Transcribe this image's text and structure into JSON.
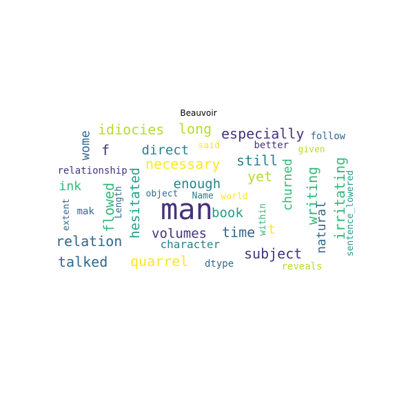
{
  "title": "Beauvoir",
  "colors": {
    "dark_purple": "#46327e",
    "purple": "#482878",
    "teal": "#31688e",
    "blue_teal": "#26828e",
    "green_teal": "#1f9e89",
    "green": "#35b779",
    "lime": "#b5de2b",
    "yellow": "#fde725"
  },
  "words": [
    {
      "text": "man",
      "color": "#46327e"
    },
    {
      "text": "especially",
      "color": "#46327e"
    },
    {
      "text": "idiocies",
      "color": "#b5de2b"
    },
    {
      "text": "long",
      "color": "#b5de2b"
    },
    {
      "text": "wome",
      "color": "#31688e"
    },
    {
      "text": "f",
      "color": "#46327e"
    },
    {
      "text": "direct",
      "color": "#26828e"
    },
    {
      "text": "follow",
      "color": "#31688e"
    },
    {
      "text": "said",
      "color": "#fde725"
    },
    {
      "text": "better",
      "color": "#46327e"
    },
    {
      "text": "given",
      "color": "#b5de2b"
    },
    {
      "text": "necessary",
      "color": "#fde725"
    },
    {
      "text": "still",
      "color": "#26828e"
    },
    {
      "text": "churned",
      "color": "#35b779"
    },
    {
      "text": "irritating",
      "color": "#35b779"
    },
    {
      "text": "relationship",
      "color": "#46327e"
    },
    {
      "text": "yet",
      "color": "#b5de2b"
    },
    {
      "text": "writing",
      "color": "#35b779"
    },
    {
      "text": "ink",
      "color": "#35b779"
    },
    {
      "text": "enough",
      "color": "#26828e"
    },
    {
      "text": "sentence_lowered",
      "color": "#1f9e89"
    },
    {
      "text": "flowed",
      "color": "#35b779"
    },
    {
      "text": "hesitated",
      "color": "#1f9e89"
    },
    {
      "text": "object",
      "color": "#31688e"
    },
    {
      "text": "Name",
      "color": "#26828e"
    },
    {
      "text": "world",
      "color": "#fde725"
    },
    {
      "text": "Length",
      "color": "#31688e"
    },
    {
      "text": "extent",
      "color": "#31688e"
    },
    {
      "text": "mak",
      "color": "#31688e"
    },
    {
      "text": "within",
      "color": "#35b779"
    },
    {
      "text": "book",
      "color": "#1f9e89"
    },
    {
      "text": "natural",
      "color": "#31688e"
    },
    {
      "text": "t",
      "color": "#fde725"
    },
    {
      "text": "time",
      "color": "#31688e"
    },
    {
      "text": "volumes",
      "color": "#46327e"
    },
    {
      "text": "relation",
      "color": "#31688e"
    },
    {
      "text": "character",
      "color": "#26828e"
    },
    {
      "text": "subject",
      "color": "#46327e"
    },
    {
      "text": "talked",
      "color": "#31688e"
    },
    {
      "text": "quarrel",
      "color": "#fde725"
    },
    {
      "text": "dtype",
      "color": "#31688e"
    },
    {
      "text": "reveals",
      "color": "#b5de2b"
    }
  ]
}
